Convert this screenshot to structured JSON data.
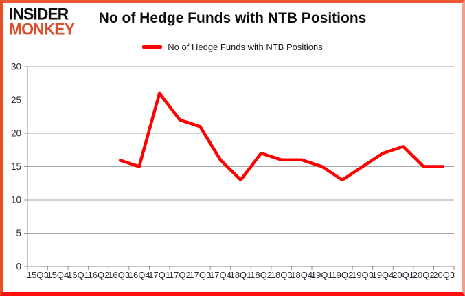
{
  "logo": {
    "line1": "INSIDER",
    "line2": "MONKEY",
    "line2_color": "#dd4e2a"
  },
  "header": {
    "title": "No of Hedge Funds with NTB Positions"
  },
  "legend": {
    "label": "No of Hedge Funds with NTB Positions",
    "swatch_color": "#ff0000"
  },
  "chart_data": {
    "type": "line",
    "title": "No of Hedge Funds with NTB Positions",
    "categories": [
      "15Q3",
      "15Q4",
      "16Q1",
      "16Q2",
      "16Q3",
      "16Q4",
      "17Q1",
      "17Q2",
      "17Q3",
      "17Q4",
      "18Q1",
      "18Q2",
      "18Q3",
      "18Q4",
      "19Q1",
      "19Q2",
      "19Q3",
      "19Q4",
      "20Q1",
      "20Q2",
      "20Q3"
    ],
    "series": [
      {
        "name": "No of Hedge Funds with NTB Positions",
        "color": "#ff0000",
        "values": [
          null,
          null,
          null,
          null,
          16,
          15,
          26,
          22,
          21,
          16,
          13,
          17,
          16,
          16,
          15,
          13,
          15,
          17,
          18,
          15,
          15
        ]
      }
    ],
    "xlabel": "",
    "ylabel": "",
    "ylim": [
      0,
      30
    ],
    "y_ticks": [
      0,
      5,
      10,
      15,
      20,
      25,
      30
    ],
    "grid": true,
    "legend_position": "top",
    "axis_color": "#8f8f8f",
    "gridline_color": "#a6a6a6",
    "tick_label_color": "#2b2b33"
  }
}
